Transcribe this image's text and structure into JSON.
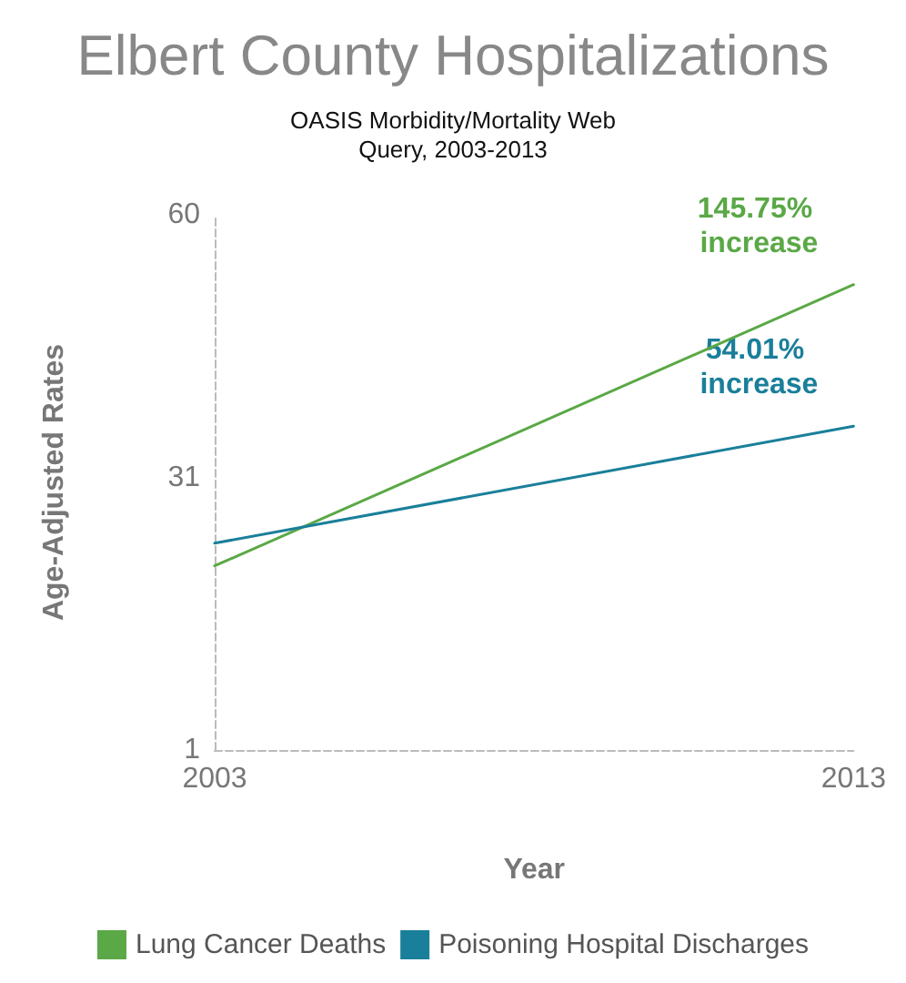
{
  "chart_data": {
    "type": "line",
    "title": "Elbert County Hospitalizations",
    "subtitle": "OASIS Morbidity/Mortality Web\nQuery, 2003-2013",
    "xlabel": "Year",
    "ylabel": "Age-Adjusted Rates",
    "x": [
      2003,
      2013
    ],
    "series": [
      {
        "name": "Lung Cancer Deaths",
        "color": "#5aa846",
        "values": [
          21.3,
          52.3
        ]
      },
      {
        "name": "Poisoning Hospital Discharges",
        "color": "#1a7f9a",
        "values": [
          23.8,
          36.7
        ]
      }
    ],
    "annotations": [
      "145.75% increase",
      "54.01% increase"
    ],
    "xlim": [
      2003,
      2013
    ],
    "xticks": [
      2003,
      2013
    ],
    "ylim": [
      1,
      60
    ],
    "yticks": [
      1,
      31,
      60
    ],
    "grid": false,
    "legend": "bottom",
    "marker": "none",
    "line_style": "solid"
  }
}
